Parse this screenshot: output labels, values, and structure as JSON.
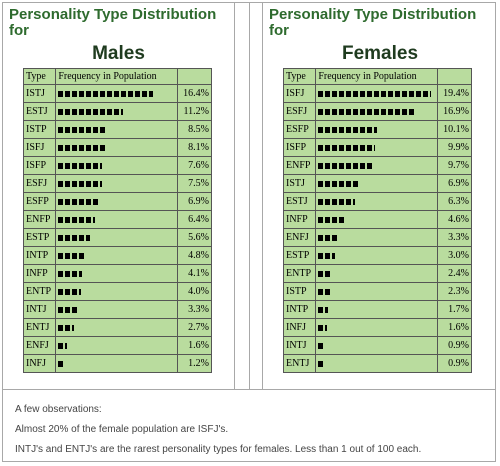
{
  "chart_data": [
    {
      "type": "table",
      "title": "Personality Type Distribution for",
      "subtitle": "Males",
      "headers": [
        "Type",
        "Frequency in Population"
      ],
      "rows": [
        {
          "type": "ISTJ",
          "pct": "16.4%",
          "value": 16.4
        },
        {
          "type": "ESTJ",
          "pct": "11.2%",
          "value": 11.2
        },
        {
          "type": "ISTP",
          "pct": "8.5%",
          "value": 8.5
        },
        {
          "type": "ISFJ",
          "pct": "8.1%",
          "value": 8.1
        },
        {
          "type": "ISFP",
          "pct": "7.6%",
          "value": 7.6
        },
        {
          "type": "ESFJ",
          "pct": "7.5%",
          "value": 7.5
        },
        {
          "type": "ESFP",
          "pct": "6.9%",
          "value": 6.9
        },
        {
          "type": "ENFP",
          "pct": "6.4%",
          "value": 6.4
        },
        {
          "type": "ESTP",
          "pct": "5.6%",
          "value": 5.6
        },
        {
          "type": "INTP",
          "pct": "4.8%",
          "value": 4.8
        },
        {
          "type": "INFP",
          "pct": "4.1%",
          "value": 4.1
        },
        {
          "type": "ENTP",
          "pct": "4.0%",
          "value": 4.0
        },
        {
          "type": "INTJ",
          "pct": "3.3%",
          "value": 3.3
        },
        {
          "type": "ENTJ",
          "pct": "2.7%",
          "value": 2.7
        },
        {
          "type": "ENFJ",
          "pct": "1.6%",
          "value": 1.6
        },
        {
          "type": "INFJ",
          "pct": "1.2%",
          "value": 1.2
        }
      ]
    },
    {
      "type": "table",
      "title": "Personality Type Distribution for",
      "subtitle": "Females",
      "headers": [
        "Type",
        "Frequency in Population"
      ],
      "rows": [
        {
          "type": "ISFJ",
          "pct": "19.4%",
          "value": 19.4
        },
        {
          "type": "ESFJ",
          "pct": "16.9%",
          "value": 16.9
        },
        {
          "type": "ESFP",
          "pct": "10.1%",
          "value": 10.1
        },
        {
          "type": "ISFP",
          "pct": "9.9%",
          "value": 9.9
        },
        {
          "type": "ENFP",
          "pct": "9.7%",
          "value": 9.7
        },
        {
          "type": "ISTJ",
          "pct": "6.9%",
          "value": 6.9
        },
        {
          "type": "ESTJ",
          "pct": "6.3%",
          "value": 6.3
        },
        {
          "type": "INFP",
          "pct": "4.6%",
          "value": 4.6
        },
        {
          "type": "ENFJ",
          "pct": "3.3%",
          "value": 3.3
        },
        {
          "type": "ESTP",
          "pct": "3.0%",
          "value": 3.0
        },
        {
          "type": "ENTP",
          "pct": "2.4%",
          "value": 2.4
        },
        {
          "type": "ISTP",
          "pct": "2.3%",
          "value": 2.3
        },
        {
          "type": "INTP",
          "pct": "1.7%",
          "value": 1.7
        },
        {
          "type": "INFJ",
          "pct": "1.6%",
          "value": 1.6
        },
        {
          "type": "INTJ",
          "pct": "0.9%",
          "value": 0.9
        },
        {
          "type": "ENTJ",
          "pct": "0.9%",
          "value": 0.9
        }
      ]
    }
  ],
  "notes": {
    "line1": "A few observations:",
    "line2": "Almost 20% of the female population are ISFJ's.",
    "line3": "INTJ's and ENTJ's are the rarest personality types for females. Less than 1 out of 100 each."
  },
  "colors": {
    "title": "#2e6b2e",
    "cell_bg": "#b9dc9e",
    "bar": "#000000"
  }
}
